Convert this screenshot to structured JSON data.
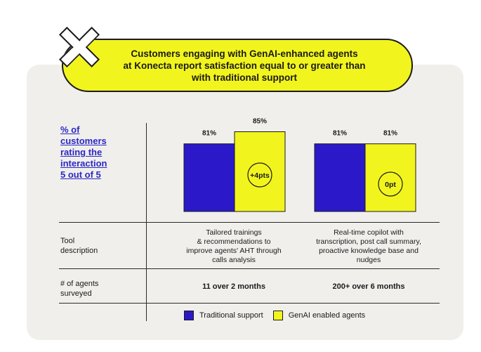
{
  "banner": {
    "title": "Customers engaging with GenAI-enhanced agents\nat Konecta report satisfaction equal to or greater than\nwith traditional support"
  },
  "rows": {
    "metric_label": "% of\ncustomers\nrating the\ninteraction\n5 out of 5",
    "tool_label": "Tool\ndescription",
    "agents_label": "# of agents\nsurveyed"
  },
  "colors": {
    "traditional": "#2b19c9",
    "genai": "#f2f51d",
    "card": "#f0efec"
  },
  "chart_data": {
    "type": "bar",
    "ylim": [
      0,
      100
    ],
    "categories": [
      "Tailored trainings",
      "Real-time copilot"
    ],
    "series": [
      {
        "name": "Traditional support",
        "values": [
          81,
          81
        ],
        "labels": [
          "81%",
          "81%"
        ]
      },
      {
        "name": "GenAI enabled agents",
        "values": [
          85,
          81
        ],
        "labels": [
          "85%",
          "81%"
        ]
      }
    ],
    "annotations": [
      "+4pts",
      "0pt"
    ],
    "legend": "bottom"
  },
  "groups": [
    {
      "tool_description": "Tailored trainings\n& recommendations to\nimprove agents' AHT through\ncalls analysis",
      "agents_surveyed": "11 over 2 months"
    },
    {
      "tool_description": "Real-time copilot with\ntranscription, post call summary,\nproactive knowledge base and\nnudges",
      "agents_surveyed": "200+ over 6 months"
    }
  ],
  "legend": {
    "traditional": "Traditional support",
    "genai": "GenAI enabled agents"
  }
}
